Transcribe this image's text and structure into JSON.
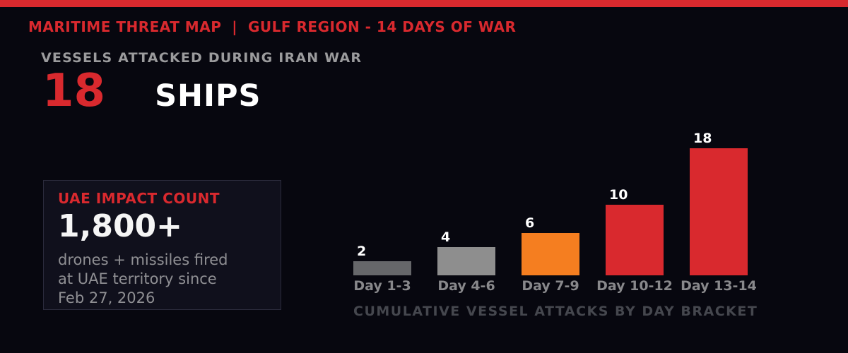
{
  "colors": {
    "background": "#07070f",
    "accent_red": "#d9292e",
    "orange": "#f57e20",
    "panel_bg": "#10101c",
    "panel_border": "#2b2b3c",
    "muted_text": "#8f8f93",
    "axis_label_gray": "#88888b",
    "caption_gray": "#45474e"
  },
  "header": {
    "title": "MARITIME THREAT MAP  |  GULF REGION - 14 DAYS OF WAR"
  },
  "headline": {
    "label": "VESSELS ATTACKED DURING IRAN WAR",
    "value": "18",
    "unit": "SHIPS"
  },
  "impact_box": {
    "title": "UAE IMPACT COUNT",
    "value": "1,800+",
    "description_lines": [
      "drones + missiles fired",
      "at UAE territory since",
      "Feb 27, 2026"
    ]
  },
  "chart_data": {
    "type": "bar",
    "categories": [
      "Day 1-3",
      "Day 4-6",
      "Day 7-9",
      "Day 10-12",
      "Day 13-14"
    ],
    "values": [
      2,
      4,
      6,
      10,
      18
    ],
    "bar_colors": [
      "#66676a",
      "#8e8e8e",
      "#f57e20",
      "#d9292e",
      "#d9292e"
    ],
    "value_labels_shown": true,
    "title": "CUMULATIVE VESSEL ATTACKS BY DAY BRACKET",
    "xlabel": "",
    "ylabel": "",
    "ylim": [
      0,
      18
    ],
    "grid": false,
    "legend": false
  }
}
